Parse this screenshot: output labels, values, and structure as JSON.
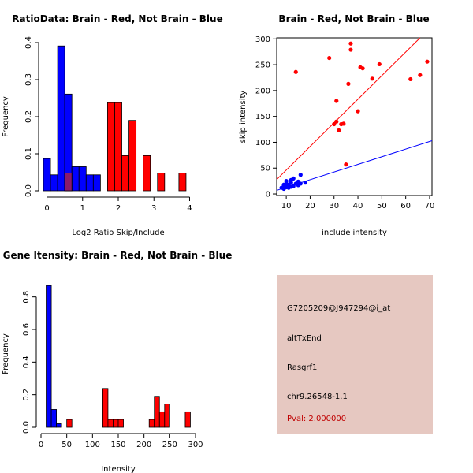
{
  "colors": {
    "brain": "#ff0000",
    "not_brain": "#0000ff",
    "overlap": "#8b1a6b",
    "edge": "#000000",
    "panel_bg": "#e6c8c1",
    "pval": "#c00000"
  },
  "chart_data": [
    {
      "id": "ratio",
      "type": "histogram",
      "title": "RatioData: Brain - Red, Not Brain - Blue",
      "xlabel": "Log2 Ratio Skip/Include",
      "ylabel": "Frequency",
      "xlim": [
        -0.1,
        4.1
      ],
      "ylim": [
        0,
        0.4
      ],
      "xticks": [
        0,
        1,
        2,
        3,
        4
      ],
      "xticklabels": [
        "0",
        "1",
        "2",
        "3",
        "4"
      ],
      "yticks": [
        0,
        0.1,
        0.2,
        0.3,
        0.4
      ],
      "yticklabels": [
        "0.0",
        "0.1",
        "0.2",
        "0.3",
        "0.4"
      ],
      "ytick_rotate": true,
      "series": [
        {
          "name": "Not Brain",
          "color": "not_brain",
          "bins": [
            [
              -0.1,
              0.1,
              0.087
            ],
            [
              0.1,
              0.3,
              0.043
            ],
            [
              0.3,
              0.5,
              0.391
            ],
            [
              0.5,
              0.7,
              0.261
            ],
            [
              0.7,
              0.9,
              0.065
            ],
            [
              0.9,
              1.1,
              0.065
            ],
            [
              1.1,
              1.3,
              0.043
            ],
            [
              1.3,
              1.5,
              0.043
            ]
          ]
        },
        {
          "name": "Brain",
          "color": "brain",
          "bins": [
            [
              0.5,
              0.7,
              0.048
            ],
            [
              1.7,
              1.9,
              0.238
            ],
            [
              1.9,
              2.1,
              0.238
            ],
            [
              2.1,
              2.3,
              0.095
            ],
            [
              2.3,
              2.5,
              0.19
            ],
            [
              2.7,
              2.9,
              0.095
            ],
            [
              3.1,
              3.3,
              0.048
            ],
            [
              3.7,
              3.9,
              0.048
            ]
          ]
        }
      ],
      "overlap": [
        [
          0.5,
          0.7,
          0.048
        ]
      ]
    },
    {
      "id": "scatter",
      "type": "scatter",
      "title": "Brain - Red, Not Brain - Blue",
      "xlabel": "include intensity",
      "ylabel": "skip intensity",
      "xlim": [
        6,
        71
      ],
      "ylim": [
        -3,
        302
      ],
      "xticks": [
        10,
        20,
        30,
        40,
        50,
        60,
        70
      ],
      "xticklabels": [
        "10",
        "20",
        "30",
        "40",
        "50",
        "60",
        "70"
      ],
      "yticks": [
        0,
        50,
        100,
        150,
        200,
        250,
        300
      ],
      "yticklabels": [
        "0",
        "50",
        "100",
        "150",
        "200",
        "250",
        "300"
      ],
      "ytick_rotate": false,
      "series": [
        {
          "name": "Brain",
          "color": "brain",
          "points": [
            [
              14,
              236
            ],
            [
              28,
              263
            ],
            [
              37,
              291
            ],
            [
              37,
              279
            ],
            [
              36,
              213
            ],
            [
              42,
              243
            ],
            [
              41,
              245
            ],
            [
              46,
              223
            ],
            [
              49,
              251
            ],
            [
              62,
              222
            ],
            [
              66,
              230
            ],
            [
              69,
              256
            ],
            [
              31,
              180
            ],
            [
              40,
              160
            ],
            [
              30,
              135
            ],
            [
              31,
              140
            ],
            [
              33,
              135
            ],
            [
              34,
              136
            ],
            [
              32,
              123
            ],
            [
              35,
              57
            ]
          ]
        },
        {
          "name": "Not Brain",
          "color": "not_brain",
          "points": [
            [
              8,
              12
            ],
            [
              9,
              10
            ],
            [
              9,
              15
            ],
            [
              10,
              20
            ],
            [
              10,
              13
            ],
            [
              11,
              18
            ],
            [
              11,
              12
            ],
            [
              12,
              22
            ],
            [
              12,
              27
            ],
            [
              13,
              15
            ],
            [
              13,
              30
            ],
            [
              14,
              20
            ],
            [
              15,
              17
            ],
            [
              15,
              24
            ],
            [
              16,
              37
            ],
            [
              16,
              20
            ],
            [
              18,
              22
            ],
            [
              9,
              18
            ],
            [
              10,
              25
            ],
            [
              12,
              14
            ]
          ]
        }
      ],
      "fit_lines": [
        {
          "name": "Brain fit",
          "color": "brain",
          "from": [
            6,
            28
          ],
          "to": [
            66,
            302
          ]
        },
        {
          "name": "Not Brain fit",
          "color": "not_brain",
          "from": [
            6,
            7
          ],
          "to": [
            71,
            103
          ]
        }
      ]
    },
    {
      "id": "intensity",
      "type": "histogram",
      "title": "Gene Itensity: Brain - Red, Not Brain - Blue",
      "xlabel": "Intensity",
      "ylabel": "Frequency",
      "xlim": [
        0,
        300
      ],
      "ylim": [
        0,
        0.9
      ],
      "xticks": [
        0,
        50,
        100,
        150,
        200,
        250,
        300
      ],
      "xticklabels": [
        "0",
        "50",
        "100",
        "150",
        "200",
        "250",
        "300"
      ],
      "yticks": [
        0,
        0.2,
        0.4,
        0.6,
        0.8
      ],
      "yticklabels": [
        "0.0",
        "0.2",
        "0.4",
        "0.6",
        "0.8"
      ],
      "ytick_rotate": true,
      "series": [
        {
          "name": "Not Brain",
          "color": "not_brain",
          "bins": [
            [
              10,
              20,
              0.87
            ],
            [
              20,
              30,
              0.109
            ],
            [
              30,
              40,
              0.022
            ],
            [
              40,
              50,
              0.0
            ]
          ]
        },
        {
          "name": "Brain",
          "color": "brain",
          "bins": [
            [
              50,
              60,
              0.048
            ],
            [
              120,
              130,
              0.238
            ],
            [
              130,
              140,
              0.048
            ],
            [
              140,
              150,
              0.048
            ],
            [
              150,
              160,
              0.048
            ],
            [
              210,
              220,
              0.048
            ],
            [
              220,
              230,
              0.19
            ],
            [
              230,
              240,
              0.095
            ],
            [
              240,
              250,
              0.143
            ],
            [
              260,
              270,
              0.0
            ],
            [
              270,
              280,
              0.0
            ],
            [
              280,
              290,
              0.095
            ]
          ]
        }
      ],
      "overlap": []
    }
  ],
  "info": {
    "probe_id": "G7205209@J947294@i_at",
    "event_type": "altTxEnd",
    "gene": "Rasgrf1",
    "location": "chr9.26548-1.1",
    "pval": "Pval: 2.000000"
  }
}
